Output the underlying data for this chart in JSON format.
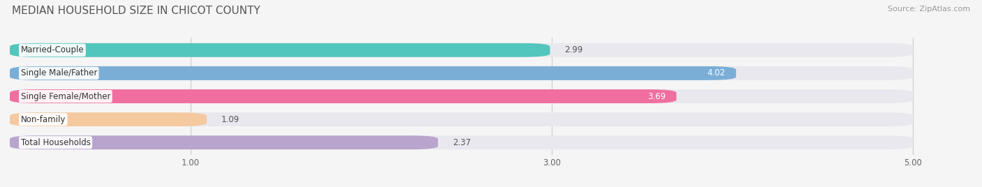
{
  "title": "MEDIAN HOUSEHOLD SIZE IN CHICOT COUNTY",
  "source": "Source: ZipAtlas.com",
  "categories": [
    "Married-Couple",
    "Single Male/Father",
    "Single Female/Mother",
    "Non-family",
    "Total Households"
  ],
  "values": [
    2.99,
    4.02,
    3.69,
    1.09,
    2.37
  ],
  "bar_colors": [
    "#52c5bc",
    "#7aaed6",
    "#f06fa0",
    "#f5c9a0",
    "#b8a4cc"
  ],
  "value_label_colors": [
    "#555555",
    "#ffffff",
    "#ffffff",
    "#555555",
    "#555555"
  ],
  "value_label_inside": [
    false,
    true,
    true,
    false,
    false
  ],
  "xlim_min": 0,
  "xlim_max": 5.3,
  "xaxis_max": 5.0,
  "xticks": [
    1.0,
    3.0,
    5.0
  ],
  "xtick_labels": [
    "1.00",
    "3.00",
    "5.00"
  ],
  "bar_height": 0.6,
  "background_color": "#f5f5f5",
  "bar_bg_color": "#e8e8ee",
  "title_fontsize": 11,
  "label_fontsize": 8.5,
  "value_fontsize": 8.5,
  "source_fontsize": 8
}
